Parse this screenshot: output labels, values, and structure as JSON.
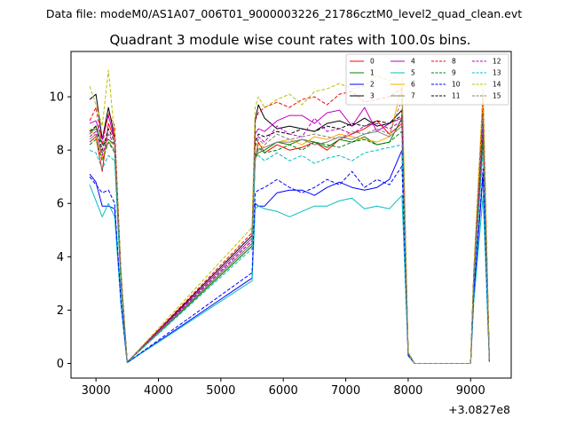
{
  "chart_data": {
    "type": "line",
    "suptitle": "Data file: modeM0/AS1A07_006T01_9000003226_21786cztM0_level2_quad_clean.evt",
    "title": "Quadrant 3 module wise count rates with 100.0s bins.",
    "xlabel": "",
    "ylabel": "",
    "offset_text": "+3.0827e8",
    "xlim": [
      2600,
      9650
    ],
    "ylim": [
      -0.55,
      11.7
    ],
    "xticks": [
      3000,
      4000,
      5000,
      6000,
      7000,
      8000,
      9000
    ],
    "yticks": [
      0,
      2,
      4,
      6,
      8,
      10
    ],
    "legend_position": "upper right",
    "series": [
      {
        "name": "0",
        "color": "#ff0000",
        "dash": "solid",
        "values": [
          8.3,
          8.5,
          7.2,
          9.0,
          8.4,
          3.2,
          0.05,
          4.5,
          7.6,
          8.3,
          7.9,
          8.2,
          8.0,
          8.1,
          8.3,
          8.0,
          8.4,
          8.6,
          8.8,
          9.1,
          8.6,
          9.0,
          0.4,
          0.0,
          0.0,
          3.0,
          8.3,
          0.1
        ]
      },
      {
        "name": "1",
        "color": "#008000",
        "dash": "solid",
        "values": [
          8.6,
          8.9,
          8.2,
          8.4,
          8.2,
          3.1,
          0.05,
          4.4,
          7.7,
          7.9,
          8.0,
          8.3,
          8.2,
          8.4,
          8.3,
          8.1,
          8.4,
          8.3,
          8.5,
          8.2,
          8.3,
          9.2,
          0.4,
          0.0,
          0.0,
          3.2,
          8.7,
          0.1
        ]
      },
      {
        "name": "2",
        "color": "#0000ff",
        "dash": "solid",
        "values": [
          7.1,
          6.8,
          5.9,
          5.9,
          5.8,
          2.3,
          0.03,
          3.2,
          6.0,
          5.9,
          5.9,
          6.4,
          6.5,
          6.5,
          6.3,
          6.6,
          6.8,
          6.6,
          6.5,
          6.6,
          6.9,
          8.0,
          0.3,
          0.0,
          0.0,
          2.5,
          7.1,
          0.07
        ]
      },
      {
        "name": "3",
        "color": "#000000",
        "dash": "solid",
        "values": [
          9.9,
          10.1,
          8.4,
          9.6,
          8.5,
          3.4,
          0.05,
          4.8,
          9.1,
          9.7,
          9.2,
          8.8,
          8.9,
          8.8,
          8.7,
          9.0,
          9.1,
          8.9,
          9.2,
          8.9,
          9.0,
          9.5,
          0.4,
          0.0,
          0.0,
          3.3,
          9.7,
          0.1
        ]
      },
      {
        "name": "4",
        "color": "#bf00bf",
        "dash": "solid",
        "values": [
          9.0,
          9.1,
          8.4,
          9.3,
          8.4,
          3.2,
          0.05,
          4.7,
          8.6,
          8.8,
          8.7,
          9.1,
          9.3,
          9.3,
          9.0,
          9.4,
          9.5,
          8.9,
          9.6,
          8.7,
          9.0,
          9.2,
          0.4,
          0.0,
          0.0,
          3.2,
          8.8,
          0.1
        ]
      },
      {
        "name": "5",
        "color": "#00bfbf",
        "dash": "solid",
        "values": [
          6.7,
          6.1,
          5.5,
          6.0,
          5.5,
          2.2,
          0.03,
          3.1,
          5.8,
          5.9,
          5.8,
          5.7,
          5.5,
          5.7,
          5.9,
          5.9,
          6.1,
          6.2,
          5.8,
          5.9,
          5.8,
          6.3,
          0.3,
          0.0,
          0.0,
          2.3,
          6.3,
          0.06
        ]
      },
      {
        "name": "6",
        "color": "#ffa500",
        "dash": "solid",
        "values": [
          8.8,
          8.5,
          7.7,
          8.3,
          8.2,
          3.1,
          0.05,
          4.5,
          8.2,
          8.2,
          8.1,
          8.3,
          8.4,
          8.2,
          8.5,
          8.4,
          8.6,
          8.5,
          8.4,
          8.3,
          8.5,
          10.4,
          0.4,
          0.0,
          0.0,
          3.4,
          10.0,
          0.1
        ]
      },
      {
        "name": "7",
        "color": "#808080",
        "dash": "solid",
        "values": [
          8.4,
          8.6,
          7.9,
          8.3,
          8.0,
          3.1,
          0.05,
          4.5,
          7.8,
          8.0,
          8.1,
          8.3,
          8.3,
          8.4,
          8.2,
          8.3,
          8.5,
          8.4,
          8.6,
          8.7,
          8.5,
          8.9,
          0.4,
          0.0,
          0.0,
          3.1,
          8.6,
          0.1
        ]
      },
      {
        "name": "8",
        "color": "#ff0000",
        "dash": "dashed",
        "values": [
          9.1,
          9.6,
          8.2,
          9.4,
          8.9,
          3.3,
          0.05,
          4.9,
          9.1,
          9.4,
          9.6,
          9.8,
          9.6,
          9.9,
          10.0,
          9.7,
          10.1,
          10.2,
          9.8,
          9.9,
          10.0,
          10.3,
          0.4,
          0.0,
          0.0,
          3.4,
          10.1,
          0.1
        ]
      },
      {
        "name": "9",
        "color": "#008000",
        "dash": "dashed",
        "values": [
          8.2,
          8.4,
          7.6,
          8.3,
          7.9,
          3.0,
          0.05,
          4.4,
          7.8,
          8.1,
          7.9,
          8.0,
          8.2,
          8.0,
          8.3,
          8.2,
          8.1,
          8.3,
          8.4,
          8.2,
          8.3,
          8.7,
          0.4,
          0.0,
          0.0,
          3.1,
          8.5,
          0.1
        ]
      },
      {
        "name": "10",
        "color": "#0000ff",
        "dash": "dashed",
        "values": [
          7.0,
          6.7,
          6.4,
          6.5,
          6.0,
          2.3,
          0.03,
          3.4,
          6.4,
          6.5,
          6.6,
          6.9,
          6.6,
          6.4,
          6.6,
          6.9,
          6.7,
          7.2,
          6.6,
          6.9,
          6.7,
          7.4,
          0.3,
          0.0,
          0.0,
          2.6,
          7.3,
          0.07
        ]
      },
      {
        "name": "11",
        "color": "#000000",
        "dash": "dashed",
        "values": [
          8.7,
          8.9,
          8.0,
          8.8,
          8.3,
          3.2,
          0.05,
          4.6,
          8.2,
          8.6,
          8.5,
          8.7,
          8.6,
          8.8,
          8.7,
          8.9,
          8.8,
          9.0,
          8.9,
          9.1,
          9.0,
          9.3,
          0.4,
          0.0,
          0.0,
          3.3,
          9.1,
          0.1
        ]
      },
      {
        "name": "12",
        "color": "#bf00bf",
        "dash": "dashed",
        "values": [
          8.5,
          8.7,
          7.8,
          8.6,
          8.2,
          3.1,
          0.05,
          4.6,
          8.4,
          8.5,
          8.3,
          8.9,
          8.6,
          8.5,
          9.2,
          8.7,
          8.8,
          8.6,
          8.9,
          9.0,
          8.8,
          9.1,
          0.4,
          0.0,
          0.0,
          3.2,
          9.0,
          0.1
        ]
      },
      {
        "name": "13",
        "color": "#00bfbf",
        "dash": "dashed",
        "values": [
          8.0,
          7.9,
          7.3,
          7.8,
          7.6,
          2.9,
          0.05,
          4.3,
          7.7,
          7.8,
          7.6,
          7.9,
          7.6,
          7.8,
          7.5,
          7.7,
          7.8,
          7.6,
          7.9,
          8.0,
          8.1,
          8.2,
          0.4,
          0.0,
          0.0,
          3.0,
          8.0,
          0.1
        ]
      },
      {
        "name": "14",
        "color": "#bfbf00",
        "dash": "dashed",
        "values": [
          10.4,
          9.7,
          8.9,
          11.0,
          8.5,
          3.5,
          0.05,
          5.1,
          9.6,
          10.0,
          9.6,
          9.9,
          10.1,
          9.7,
          10.2,
          10.3,
          10.5,
          10.3,
          10.4,
          10.8,
          10.6,
          10.9,
          0.4,
          0.0,
          0.0,
          3.5,
          10.3,
          0.1
        ]
      },
      {
        "name": "15",
        "color": "#808080",
        "dash": "dashed",
        "values": [
          8.6,
          8.8,
          8.2,
          8.6,
          8.4,
          3.2,
          0.05,
          4.5,
          8.1,
          8.4,
          8.2,
          8.6,
          8.4,
          8.5,
          8.6,
          8.5,
          8.4,
          8.7,
          8.6,
          8.8,
          8.6,
          9.9,
          0.4,
          0.0,
          0.0,
          3.2,
          9.3,
          0.1
        ]
      }
    ],
    "x": [
      2900,
      3000,
      3100,
      3200,
      3300,
      3400,
      3500,
      5500,
      5550,
      5600,
      5700,
      5900,
      6100,
      6300,
      6500,
      6700,
      6900,
      7100,
      7300,
      7500,
      7700,
      7900,
      8000,
      8100,
      9000,
      9050,
      9200,
      9300
    ]
  }
}
